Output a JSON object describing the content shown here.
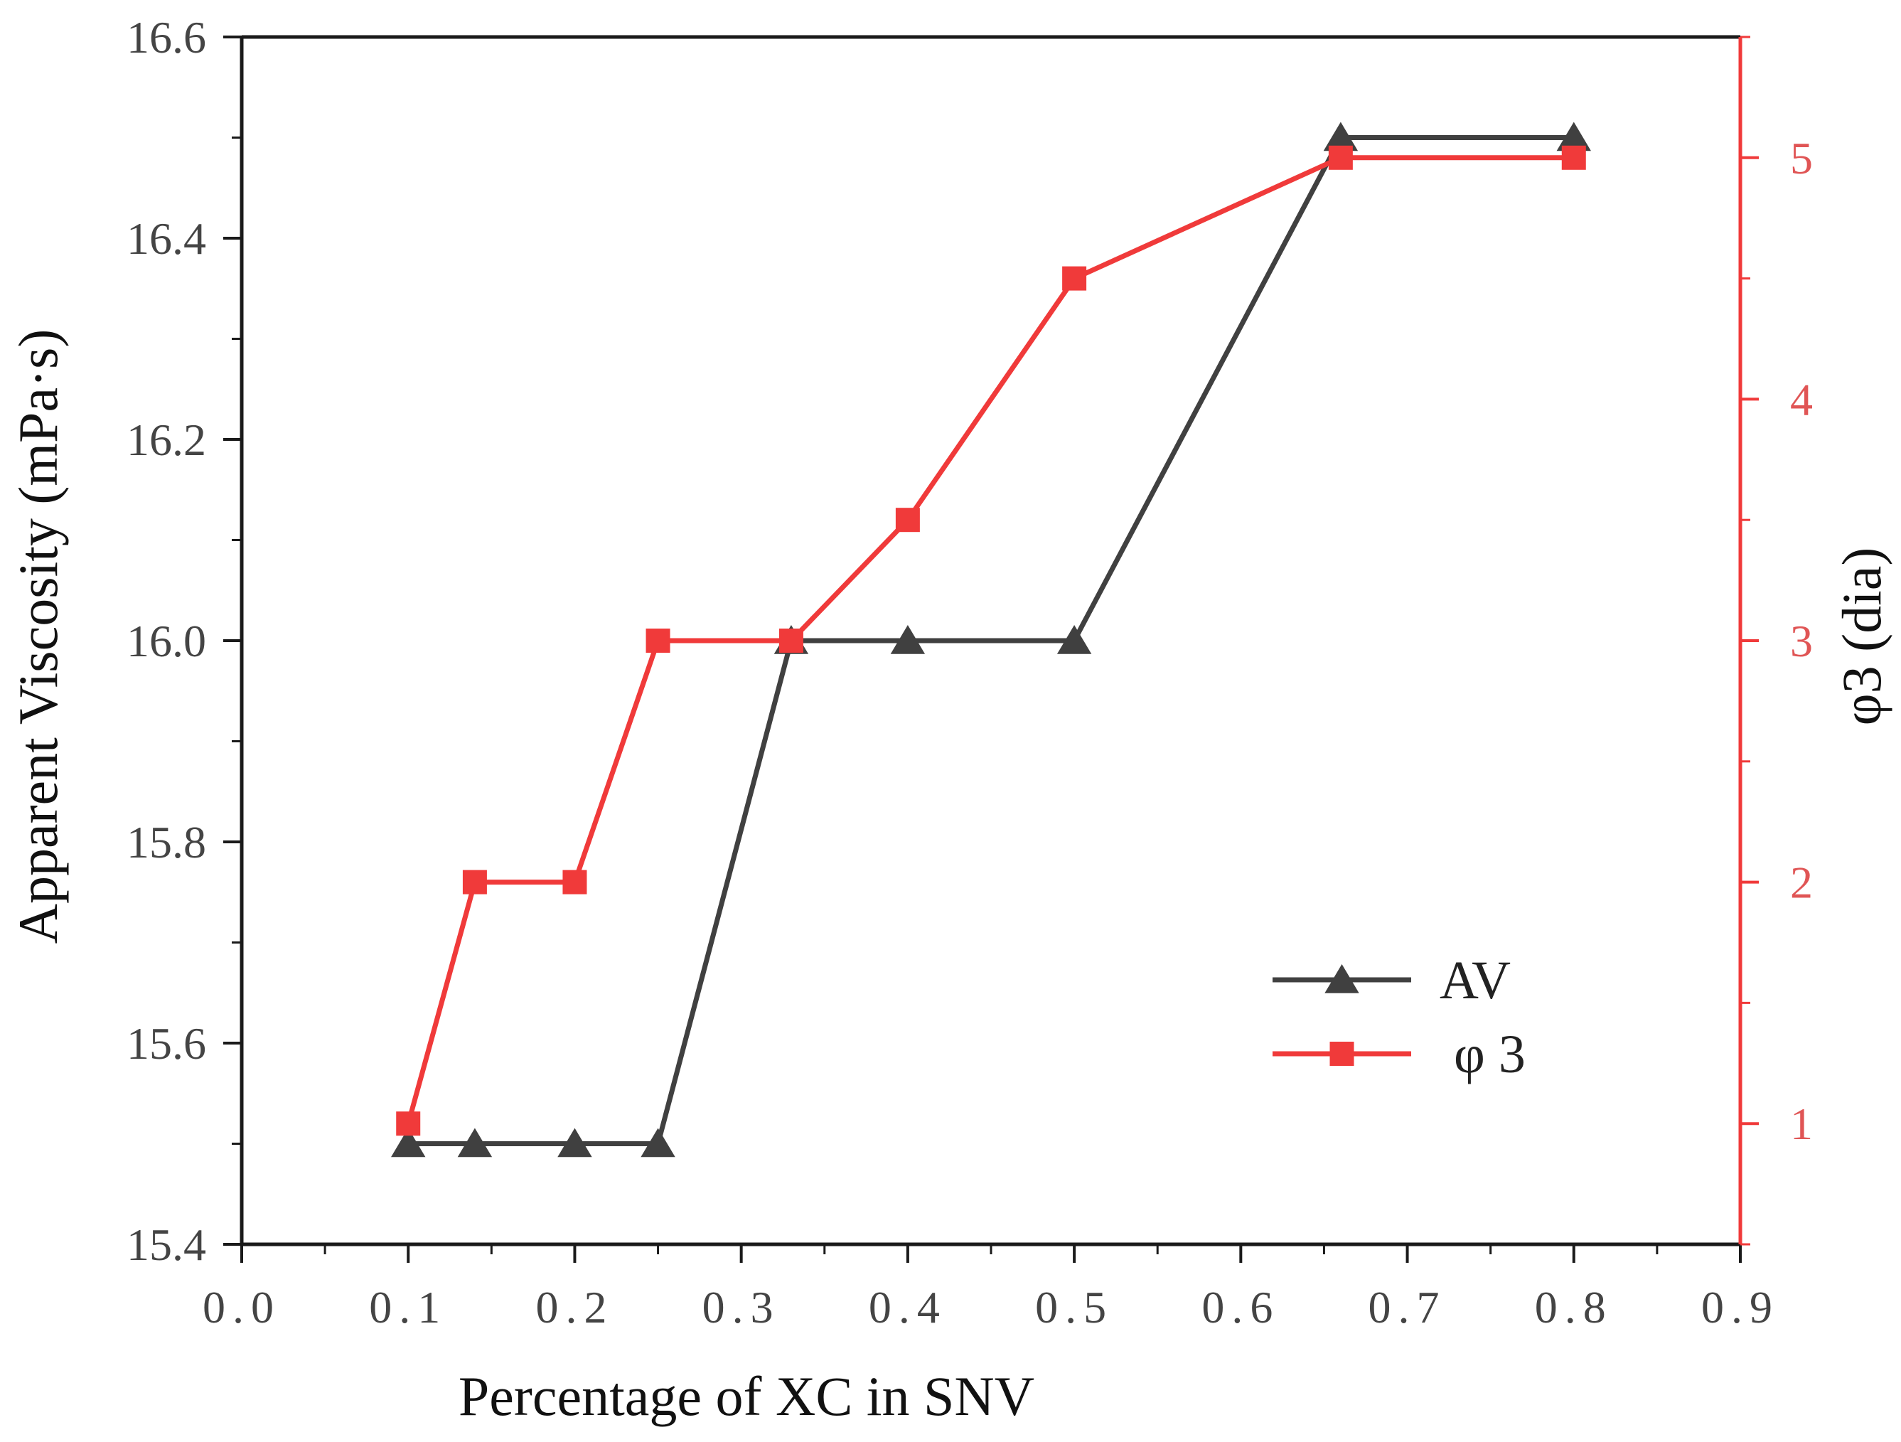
{
  "chart_data": {
    "type": "line",
    "xlabel": "Percentage of XC in SNV",
    "ylabel": "Apparent Viscosity (mPa·s)",
    "y2label": "φ3 (dia)",
    "xlim": [
      0.0,
      0.9
    ],
    "ylim": [
      15.4,
      16.6
    ],
    "y2lim": [
      0.5,
      5.5
    ],
    "x_ticks": [
      "0.0",
      "0.1",
      "0.2",
      "0.3",
      "0.4",
      "0.5",
      "0.6",
      "0.7",
      "0.8",
      "0.9"
    ],
    "y_ticks": [
      "15.4",
      "15.6",
      "15.8",
      "16.0",
      "16.2",
      "16.4",
      "16.6"
    ],
    "y2_ticks": [
      "1",
      "2",
      "3",
      "4",
      "5"
    ],
    "legend_position": "lower-right",
    "series": [
      {
        "name": "AV",
        "axis": "left",
        "marker": "triangle",
        "color": "#404040",
        "x": [
          0.1,
          0.14,
          0.2,
          0.25,
          0.33,
          0.4,
          0.5,
          0.66,
          0.8
        ],
        "values": [
          15.5,
          15.5,
          15.5,
          15.5,
          16.0,
          16.0,
          16.0,
          16.5,
          16.5
        ]
      },
      {
        "name": "φ 3",
        "axis": "right",
        "marker": "square",
        "color": "#f03a3a",
        "x": [
          0.1,
          0.14,
          0.2,
          0.25,
          0.33,
          0.4,
          0.5,
          0.66,
          0.8
        ],
        "values": [
          1,
          2,
          2,
          3,
          3,
          3.5,
          4.5,
          5,
          5
        ]
      }
    ],
    "colors": {
      "axis": "#1a1a1a",
      "right_axis": "#f03a3a",
      "right_tick_text": "#e05555"
    }
  }
}
